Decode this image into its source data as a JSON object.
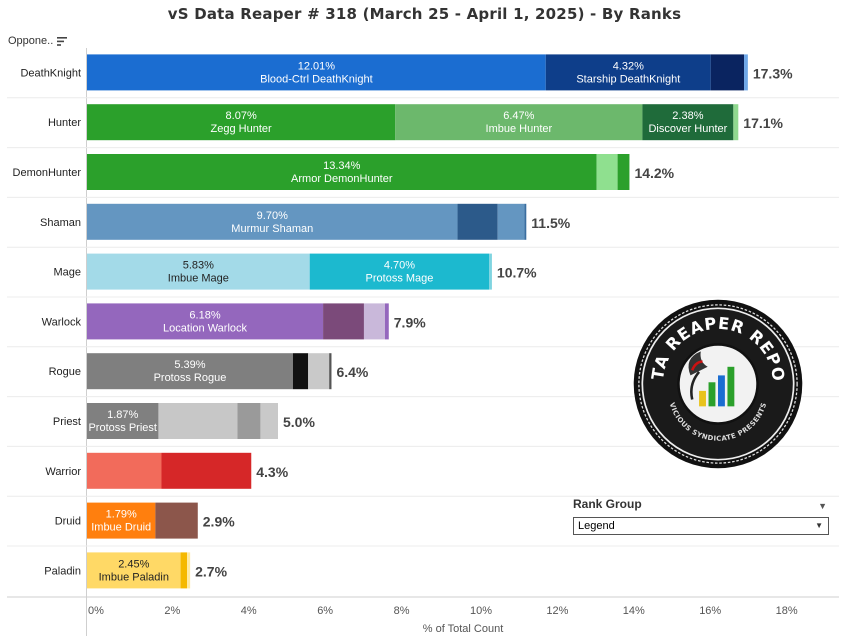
{
  "header": {
    "title": "vS Data Reaper #  318 (March 25 - April 1, 2025) - By Ranks",
    "column_label": "Oppone.."
  },
  "legend": {
    "title": "Rank Group",
    "selected": "Legend"
  },
  "logo": {
    "text_top": "DATA REAPER REPORT",
    "text_bottom": "VICIOUS SYNDICATE PRESENTS"
  },
  "chart_data": {
    "type": "bar",
    "orientation": "horizontal",
    "stacked": true,
    "title": "vS Data Reaper #  318 (March 25 - April 1, 2025) - By Ranks",
    "xlabel": "% of Total Count",
    "ylabel": "",
    "xlim": [
      0,
      19
    ],
    "xticks": [
      "0%",
      "2%",
      "4%",
      "6%",
      "8%",
      "10%",
      "12%",
      "14%",
      "16%",
      "18%"
    ],
    "categories": [
      "DeathKnight",
      "Hunter",
      "DemonHunter",
      "Shaman",
      "Mage",
      "Warlock",
      "Rogue",
      "Priest",
      "Warrior",
      "Druid",
      "Paladin"
    ],
    "rows": [
      {
        "class": "DeathKnight",
        "total": "17.3%",
        "segments": [
          {
            "value": 12.01,
            "pct": "12.01%",
            "name": "Blood-Ctrl DeathKnight",
            "color": "#1B6DD1"
          },
          {
            "value": 4.32,
            "pct": "4.32%",
            "name": "Starship DeathKnight",
            "color": "#0E3E8A"
          },
          {
            "value": 0.87,
            "color": "#0A2460"
          },
          {
            "value": 0.1,
            "color": "#6FA8E8"
          }
        ]
      },
      {
        "class": "Hunter",
        "total": "17.1%",
        "segments": [
          {
            "value": 8.07,
            "pct": "8.07%",
            "name": "Zegg Hunter",
            "color": "#2BA02B"
          },
          {
            "value": 6.47,
            "pct": "6.47%",
            "name": "Imbue Hunter",
            "color": "#6CB86C"
          },
          {
            "value": 2.38,
            "pct": "2.38%",
            "name": "Discover Hunter",
            "color": "#1F6B3A"
          },
          {
            "value": 0.13,
            "color": "#8FD88F"
          }
        ]
      },
      {
        "class": "DemonHunter",
        "total": "14.2%",
        "segments": [
          {
            "value": 13.34,
            "pct": "13.34%",
            "name": "Armor DemonHunter",
            "color": "#2BA02B"
          },
          {
            "value": 0.55,
            "color": "#8FE08F"
          },
          {
            "value": 0.31,
            "color": "#2BA02B"
          }
        ]
      },
      {
        "class": "Shaman",
        "total": "11.5%",
        "segments": [
          {
            "value": 9.7,
            "pct": "9.70%",
            "name": "Murmur Shaman",
            "color": "#6496C1"
          },
          {
            "value": 1.05,
            "color": "#2C5A8A"
          },
          {
            "value": 0.7,
            "color": "#6496C1"
          },
          {
            "value": 0.05,
            "color": "#3A6EA0"
          }
        ]
      },
      {
        "class": "Mage",
        "total": "10.7%",
        "segments": [
          {
            "value": 5.83,
            "pct": "5.83%",
            "name": "Imbue Mage",
            "color": "#A3DAE8"
          },
          {
            "value": 4.7,
            "pct": "4.70%",
            "name": "Protoss Mage",
            "color": "#1CB9CF"
          },
          {
            "value": 0.07,
            "color": "#7FD4E0"
          }
        ]
      },
      {
        "class": "Warlock",
        "total": "7.9%",
        "segments": [
          {
            "value": 6.18,
            "pct": "6.18%",
            "name": "Location Warlock",
            "color": "#9467BD"
          },
          {
            "value": 1.07,
            "color": "#7B4A7A"
          },
          {
            "value": 0.55,
            "color": "#C9B8DA"
          },
          {
            "value": 0.1,
            "color": "#9467BD"
          }
        ]
      },
      {
        "class": "Rogue",
        "total": "6.4%",
        "segments": [
          {
            "value": 5.39,
            "pct": "5.39%",
            "name": "Protoss Rogue",
            "color": "#7F7F7F"
          },
          {
            "value": 0.4,
            "color": "#111111"
          },
          {
            "value": 0.55,
            "color": "#C9C9C9"
          },
          {
            "value": 0.06,
            "color": "#555555"
          }
        ]
      },
      {
        "class": "Priest",
        "total": "5.0%",
        "segments": [
          {
            "value": 1.87,
            "pct": "1.87%",
            "name": "Protoss Priest",
            "color": "#808080"
          },
          {
            "value": 2.07,
            "color": "#C7C7C7"
          },
          {
            "value": 0.6,
            "color": "#9A9A9A"
          },
          {
            "value": 0.46,
            "color": "#C9C9C9"
          }
        ]
      },
      {
        "class": "Warrior",
        "total": "4.3%",
        "segments": [
          {
            "value": 1.95,
            "color": "#F26B5B"
          },
          {
            "value": 2.35,
            "color": "#D62728"
          }
        ]
      },
      {
        "class": "Druid",
        "total": "2.9%",
        "segments": [
          {
            "value": 1.79,
            "pct": "1.79%",
            "name": "Imbue Druid",
            "color": "#FF7F0E"
          },
          {
            "value": 1.11,
            "color": "#8C564B"
          }
        ]
      },
      {
        "class": "Paladin",
        "total": "2.7%",
        "segments": [
          {
            "value": 2.45,
            "pct": "2.45%",
            "name": "Imbue Paladin",
            "color": "#FFD966"
          },
          {
            "value": 0.17,
            "color": "#F5B800"
          },
          {
            "value": 0.08,
            "color": "#FFE9A0"
          }
        ]
      }
    ]
  }
}
